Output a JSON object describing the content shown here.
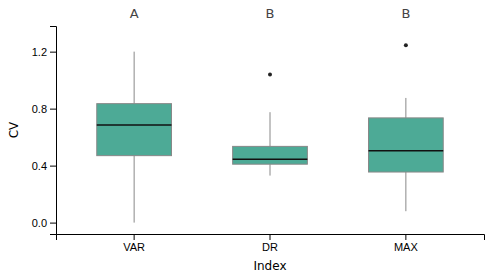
{
  "chart_data": {
    "type": "box",
    "categories": [
      "VAR",
      "DR",
      "MAX"
    ],
    "boxes": [
      {
        "whislo": 0.0,
        "q1": 0.47,
        "med": 0.685,
        "q3": 0.835,
        "whishi": 1.2,
        "fliers": []
      },
      {
        "whislo": 0.33,
        "q1": 0.41,
        "med": 0.445,
        "q3": 0.535,
        "whishi": 0.775,
        "fliers": [
          1.04
        ]
      },
      {
        "whislo": 0.08,
        "q1": 0.355,
        "med": 0.505,
        "q3": 0.735,
        "whishi": 0.875,
        "fliers": [
          1.245
        ]
      }
    ],
    "annotations": [
      "A",
      "B",
      "B"
    ],
    "color": "#4daa96",
    "x_label": "Index",
    "y_label": "CV",
    "ylim": [
      -0.08,
      1.38
    ],
    "yticks": [
      {
        "value": 0.0,
        "label": "0.0"
      },
      0.4,
      0.8,
      1.2
    ],
    "grid": false
  }
}
